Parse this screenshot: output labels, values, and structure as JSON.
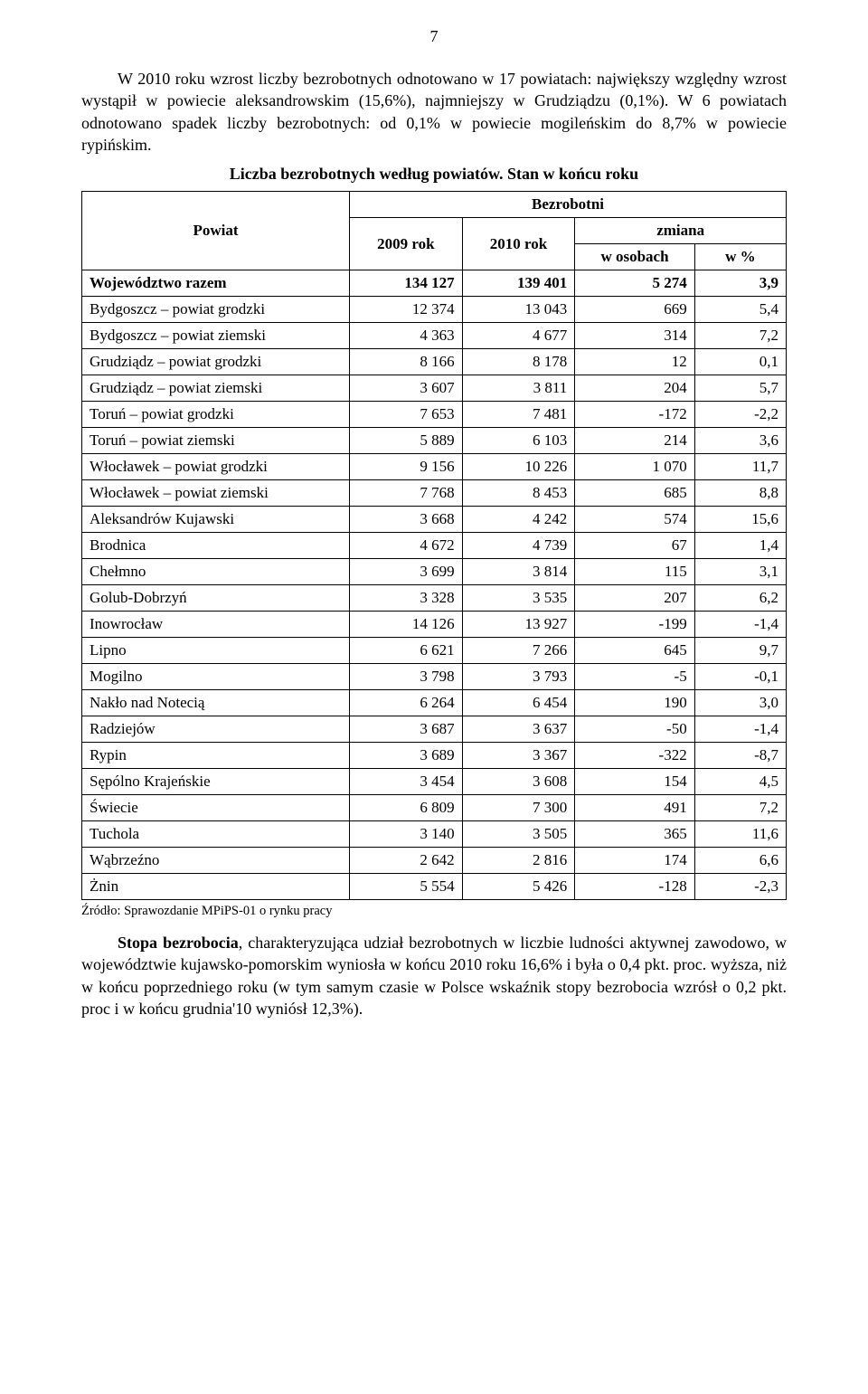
{
  "pageNumber": "7",
  "intro1": "W 2010 roku wzrost liczby bezrobotnych odnotowano w 17 powiatach: największy względny wzrost wystąpił w powiecie aleksandrowskim (15,6%), najmniejszy w Grudziądzu (0,1%). W 6 powiatach odnotowano spadek liczby bezrobotnych: od 0,1% w powiecie mogileńskim do 8,7% w powiecie rypińskim.",
  "tableTitle": "Liczba bezrobotnych według powiatów. Stan w końcu roku",
  "table": {
    "headers": {
      "powiat": "Powiat",
      "bezrobotni": "Bezrobotni",
      "y2009": "2009 rok",
      "y2010": "2010 rok",
      "zmiana": "zmiana",
      "wOsobach": "w osobach",
      "wPct": "w %"
    },
    "rows": [
      {
        "label": "Województwo razem",
        "y1": "134 127",
        "y2": "139 401",
        "d": "5 274",
        "p": "3,9",
        "bold": true
      },
      {
        "label": "Bydgoszcz – powiat grodzki",
        "y1": "12 374",
        "y2": "13 043",
        "d": "669",
        "p": "5,4"
      },
      {
        "label": "Bydgoszcz – powiat ziemski",
        "y1": "4 363",
        "y2": "4 677",
        "d": "314",
        "p": "7,2"
      },
      {
        "label": "Grudziądz – powiat grodzki",
        "y1": "8 166",
        "y2": "8 178",
        "d": "12",
        "p": "0,1"
      },
      {
        "label": "Grudziądz – powiat ziemski",
        "y1": "3 607",
        "y2": "3 811",
        "d": "204",
        "p": "5,7"
      },
      {
        "label": "Toruń – powiat grodzki",
        "y1": "7 653",
        "y2": "7 481",
        "d": "-172",
        "p": "-2,2"
      },
      {
        "label": "Toruń – powiat ziemski",
        "y1": "5 889",
        "y2": "6 103",
        "d": "214",
        "p": "3,6"
      },
      {
        "label": "Włocławek – powiat grodzki",
        "y1": "9 156",
        "y2": "10 226",
        "d": "1 070",
        "p": "11,7"
      },
      {
        "label": "Włocławek – powiat ziemski",
        "y1": "7 768",
        "y2": "8 453",
        "d": "685",
        "p": "8,8"
      },
      {
        "label": "Aleksandrów Kujawski",
        "y1": "3 668",
        "y2": "4 242",
        "d": "574",
        "p": "15,6"
      },
      {
        "label": "Brodnica",
        "y1": "4 672",
        "y2": "4 739",
        "d": "67",
        "p": "1,4"
      },
      {
        "label": "Chełmno",
        "y1": "3 699",
        "y2": "3 814",
        "d": "115",
        "p": "3,1"
      },
      {
        "label": "Golub-Dobrzyń",
        "y1": "3 328",
        "y2": "3 535",
        "d": "207",
        "p": "6,2"
      },
      {
        "label": "Inowrocław",
        "y1": "14 126",
        "y2": "13 927",
        "d": "-199",
        "p": "-1,4"
      },
      {
        "label": "Lipno",
        "y1": "6 621",
        "y2": "7 266",
        "d": "645",
        "p": "9,7"
      },
      {
        "label": "Mogilno",
        "y1": "3 798",
        "y2": "3 793",
        "d": "-5",
        "p": "-0,1"
      },
      {
        "label": "Nakło nad Notecią",
        "y1": "6 264",
        "y2": "6 454",
        "d": "190",
        "p": "3,0"
      },
      {
        "label": "Radziejów",
        "y1": "3 687",
        "y2": "3 637",
        "d": "-50",
        "p": "-1,4"
      },
      {
        "label": "Rypin",
        "y1": "3 689",
        "y2": "3 367",
        "d": "-322",
        "p": "-8,7"
      },
      {
        "label": "Sępólno Krajeńskie",
        "y1": "3 454",
        "y2": "3 608",
        "d": "154",
        "p": "4,5"
      },
      {
        "label": "Świecie",
        "y1": "6 809",
        "y2": "7 300",
        "d": "491",
        "p": "7,2"
      },
      {
        "label": "Tuchola",
        "y1": "3 140",
        "y2": "3 505",
        "d": "365",
        "p": "11,6"
      },
      {
        "label": "Wąbrzeźno",
        "y1": "2 642",
        "y2": "2 816",
        "d": "174",
        "p": "6,6"
      },
      {
        "label": "Żnin",
        "y1": "5 554",
        "y2": "5 426",
        "d": "-128",
        "p": "-2,3"
      }
    ]
  },
  "source": "Źródło: Sprawozdanie MPiPS-01 o rynku pracy",
  "outro": "Stopa bezrobocia, charakteryzująca udział bezrobotnych w liczbie ludności aktywnej zawodowo, w województwie kujawsko-pomorskim wyniosła w końcu 2010 roku 16,6% i była o 0,4 pkt. proc. wyższa, niż w końcu poprzedniego roku (w tym samym czasie w Polsce wskaźnik stopy bezrobocia wzrósł o 0,2 pkt. proc i w końcu grudnia'10 wyniósł 12,3%).",
  "outroBoldPhrase": "Stopa bezrobocia"
}
